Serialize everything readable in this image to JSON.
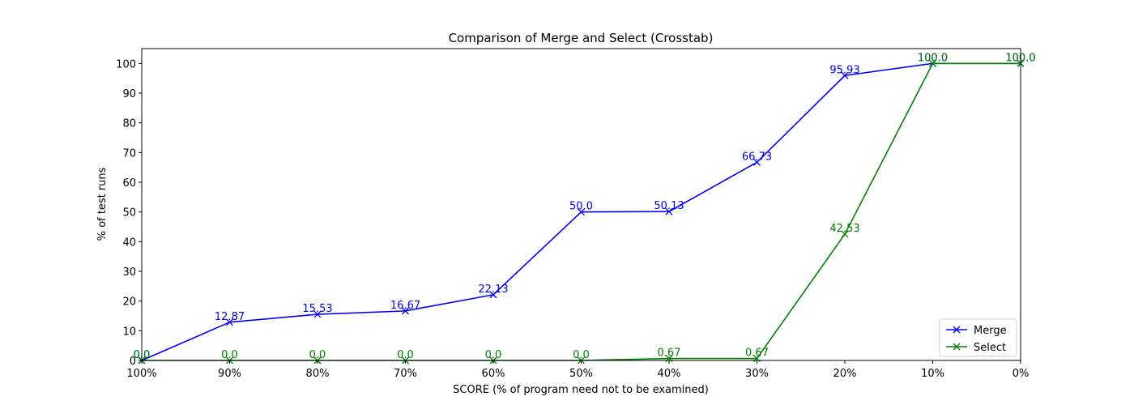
{
  "chart_data": {
    "type": "line",
    "title": "Comparison of Merge and Select (Crosstab)",
    "xlabel": "SCORE (% of program need not to be examined)",
    "ylabel": "% of test runs",
    "categories": [
      "100%",
      "90%",
      "80%",
      "70%",
      "60%",
      "50%",
      "40%",
      "30%",
      "20%",
      "10%",
      "0%"
    ],
    "ylim": [
      0,
      105
    ],
    "yticks": [
      0,
      10,
      20,
      30,
      40,
      50,
      60,
      70,
      80,
      90,
      100
    ],
    "grid": false,
    "legend_position": "lower-right",
    "series": [
      {
        "name": "Merge",
        "color": "#0000ff",
        "marker": "x",
        "values": [
          0.0,
          12.87,
          15.53,
          16.67,
          22.13,
          50.0,
          50.13,
          66.73,
          95.93,
          100.0,
          100.0
        ],
        "labels": [
          "0.0",
          "12.87",
          "15.53",
          "16.67",
          "22.13",
          "50.0",
          "50.13",
          "66.73",
          "95.93",
          "100.0",
          "100.0"
        ]
      },
      {
        "name": "Select",
        "color": "#008000",
        "marker": "x",
        "values": [
          0.0,
          0.0,
          0.0,
          0.0,
          0.0,
          0.0,
          0.67,
          0.67,
          42.53,
          100.0,
          100.0
        ],
        "labels": [
          "0.0",
          "0.0",
          "0.0",
          "0.0",
          "0.0",
          "0.0",
          "0.67",
          "0.67",
          "42.53",
          "100.0",
          "100.0"
        ]
      }
    ]
  }
}
